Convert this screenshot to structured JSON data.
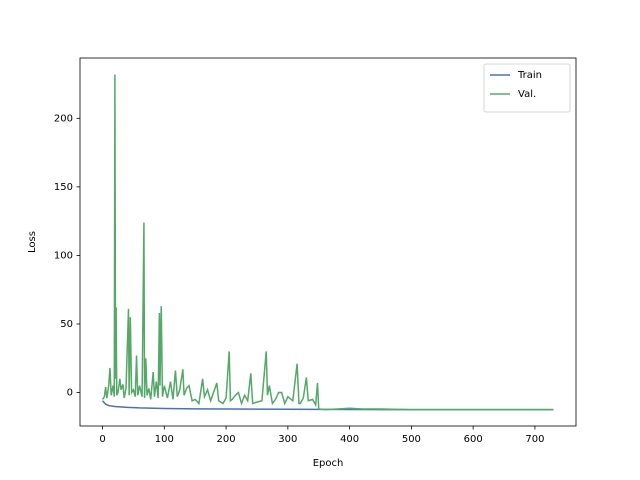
{
  "chart_data": {
    "type": "line",
    "xlabel": "Epoch",
    "ylabel": "Loss",
    "xlim": [
      -36.5,
      766.5
    ],
    "ylim": [
      -24.4,
      244
    ],
    "xticks": [
      0,
      100,
      200,
      300,
      400,
      500,
      600,
      700
    ],
    "yticks": [
      0,
      50,
      100,
      150,
      200
    ],
    "legend": "upper right",
    "series": [
      {
        "name": "Train",
        "color": "#4c72b0",
        "x": [
          0,
          5,
          10,
          20,
          40,
          60,
          100,
          150,
          200,
          300,
          400,
          500,
          600,
          730
        ],
        "values": [
          -6,
          -8.5,
          -9.5,
          -10.2,
          -10.8,
          -11.2,
          -11.6,
          -11.9,
          -12,
          -12.2,
          -12.4,
          -12.5,
          -12.5,
          -12.5
        ]
      },
      {
        "name": "Val.",
        "color": "#55a868",
        "x": [
          0,
          3,
          5,
          7,
          10,
          12,
          14,
          17,
          19,
          20,
          21,
          22,
          23,
          25,
          28,
          30,
          33,
          35,
          38,
          42,
          43,
          45,
          47,
          50,
          53,
          55,
          57,
          60,
          64,
          67,
          68,
          70,
          72,
          75,
          78,
          82,
          84,
          87,
          90,
          92,
          93,
          95,
          97,
          100,
          105,
          110,
          114,
          118,
          121,
          125,
          130,
          132,
          136,
          140,
          145,
          150,
          156,
          162,
          165,
          170,
          175,
          185,
          188,
          195,
          200,
          205,
          207,
          210,
          215,
          220,
          225,
          230,
          235,
          240,
          243,
          250,
          258,
          265,
          267,
          270,
          275,
          280,
          285,
          290,
          295,
          300,
          308,
          315,
          318,
          320,
          325,
          330,
          333,
          340,
          345,
          348,
          350,
          360,
          380,
          400,
          420,
          450,
          500,
          600,
          730
        ],
        "values": [
          -5,
          -3,
          4,
          -4,
          5,
          18,
          -2,
          5,
          -3,
          232,
          10,
          62,
          -2,
          0,
          10,
          2,
          6,
          -4,
          3,
          61,
          -2,
          55,
          0,
          2,
          -3,
          27,
          -2,
          5,
          -3,
          124,
          -4,
          25,
          -2,
          3,
          -5,
          15,
          -3,
          8,
          -4,
          58,
          5,
          63,
          -3,
          5,
          -4,
          8,
          -5,
          16,
          -3,
          2,
          17,
          -2,
          3,
          5,
          -6,
          -5,
          -8,
          10,
          -3,
          2,
          -6,
          7,
          -6,
          -8,
          -4,
          30,
          -6,
          -5,
          -2,
          0,
          -8,
          -2,
          -6,
          14,
          -8,
          -7,
          -6,
          30,
          -2,
          5,
          -8,
          -5,
          0,
          0,
          -8,
          -3,
          -6,
          21,
          -8,
          -8,
          -4,
          11,
          -6,
          -5,
          -9,
          7,
          -12,
          -12.5,
          -12,
          -11.5,
          -12,
          -12,
          -12.5,
          -12.5,
          -12.5
        ]
      }
    ]
  }
}
